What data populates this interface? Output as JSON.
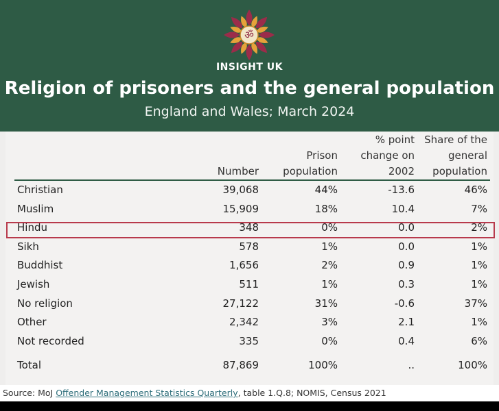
{
  "header": {
    "brand": "INSIGHT UK",
    "logo_icon": "om-flower-logo-icon",
    "title": "Religion of prisoners and the general population",
    "subtitle": "England and Wales; March 2024",
    "bg_color": "#2e5b45"
  },
  "table": {
    "columns": [
      "",
      "Number",
      "Prison population",
      "% point change on 2002",
      "Share of the general population"
    ],
    "rows": [
      [
        "Christian",
        "39,068",
        "44%",
        "-13.6",
        "46%"
      ],
      [
        "Muslim",
        "15,909",
        "18%",
        "10.4",
        "7%"
      ],
      [
        "Hindu",
        "348",
        "0%",
        "0.0",
        "2%"
      ],
      [
        "Sikh",
        "578",
        "1%",
        "0.0",
        "1%"
      ],
      [
        "Buddhist",
        "1,656",
        "2%",
        "0.9",
        "1%"
      ],
      [
        "Jewish",
        "511",
        "1%",
        "0.3",
        "1%"
      ],
      [
        "No religion",
        "27,122",
        "31%",
        "-0.6",
        "37%"
      ],
      [
        "Other",
        "2,342",
        "3%",
        "2.1",
        "1%"
      ],
      [
        "Not recorded",
        "335",
        "0%",
        "0.4",
        "6%"
      ]
    ],
    "total": [
      "Total",
      "87,869",
      "100%",
      "..",
      "100%"
    ],
    "highlighted_row": "Hindu",
    "highlight_color": "#b83a4c"
  },
  "source": {
    "prefix": "Source:  MoJ ",
    "link_text": "Offender Management Statistics Quarterly",
    "suffix": ", table 1.Q.8; NOMIS, Census 2021"
  }
}
